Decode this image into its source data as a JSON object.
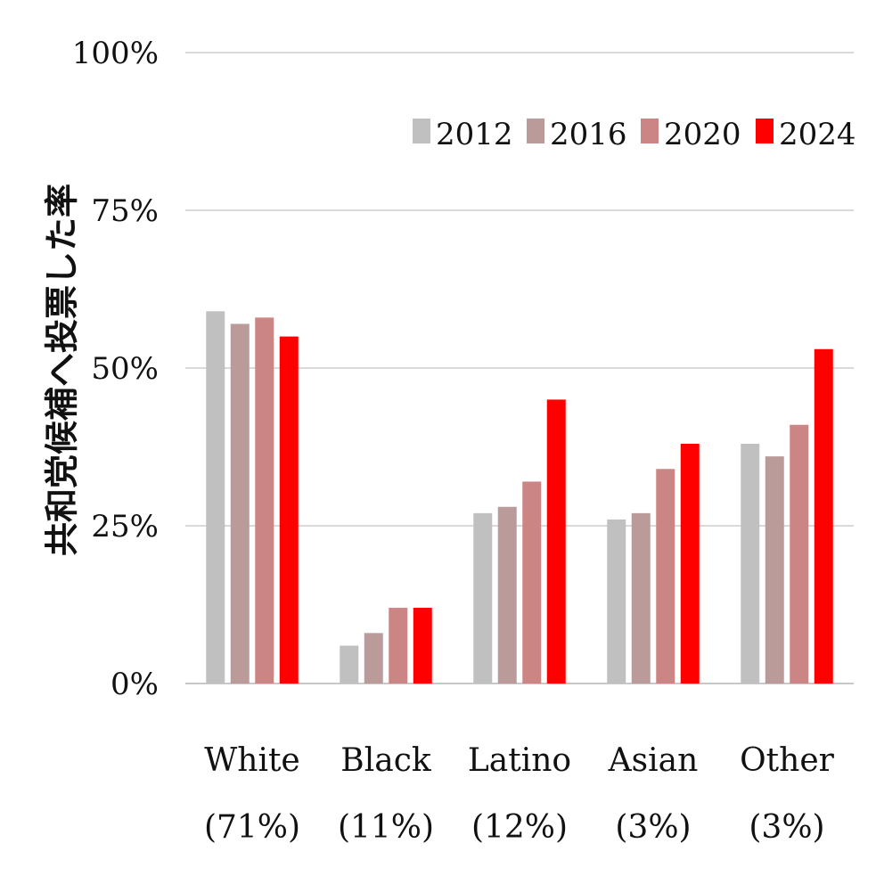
{
  "chart_data": {
    "type": "bar",
    "title": "",
    "xlabel": "",
    "ylabel": "共和党候補へ投票した率",
    "ylim": [
      0,
      100
    ],
    "yticks": [
      "0%",
      "25%",
      "50%",
      "75%",
      "100%"
    ],
    "ytick_values": [
      0,
      25,
      50,
      75,
      100
    ],
    "grid": true,
    "legend_position": "top-right",
    "categories": [
      {
        "name": "White",
        "share": "(71%)"
      },
      {
        "name": "Black",
        "share": "(11%)"
      },
      {
        "name": "Latino",
        "share": "(12%)"
      },
      {
        "name": "Asian",
        "share": "(3%)"
      },
      {
        "name": "Other",
        "share": "(3%)"
      }
    ],
    "series": [
      {
        "name": "2012",
        "color": "#c0c0c0",
        "values": [
          59,
          6,
          27,
          26,
          38
        ]
      },
      {
        "name": "2016",
        "color": "#bb9a9a",
        "values": [
          57,
          8,
          28,
          27,
          36
        ]
      },
      {
        "name": "2020",
        "color": "#cc8585",
        "values": [
          58,
          12,
          32,
          34,
          41
        ]
      },
      {
        "name": "2024",
        "color": "#ff0000",
        "values": [
          55,
          12,
          45,
          38,
          53
        ]
      }
    ]
  }
}
